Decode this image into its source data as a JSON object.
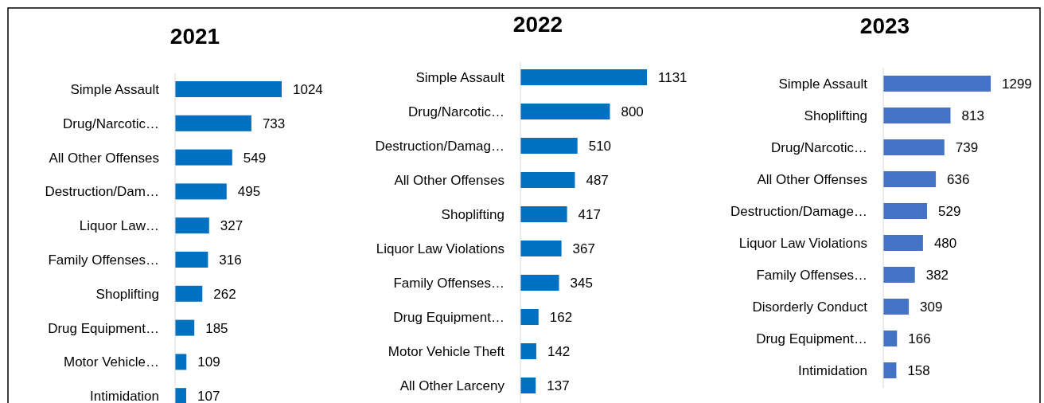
{
  "chart_data": [
    {
      "type": "bar",
      "orientation": "horizontal",
      "title": "2021",
      "color": "#0070c0",
      "data_labels": true,
      "categories": [
        "Simple Assault",
        "Drug/Narcotic…",
        "All Other Offenses",
        "Destruction/Dam…",
        "Liquor Law…",
        "Family Offenses…",
        "Shoplifting",
        "Drug Equipment…",
        "Motor Vehicle…",
        "Intimidation"
      ],
      "values": [
        1024,
        733,
        549,
        495,
        327,
        316,
        262,
        185,
        109,
        107
      ]
    },
    {
      "type": "bar",
      "orientation": "horizontal",
      "title": "2022",
      "color": "#0070c0",
      "data_labels": true,
      "categories": [
        "Simple Assault",
        "Drug/Narcotic…",
        "Destruction/Damag…",
        "All Other Offenses",
        "Shoplifting",
        "Liquor Law Violations",
        "Family Offenses…",
        "Drug Equipment…",
        "Motor Vehicle Theft",
        "All Other Larceny"
      ],
      "values": [
        1131,
        800,
        510,
        487,
        417,
        367,
        345,
        162,
        142,
        137
      ]
    },
    {
      "type": "bar",
      "orientation": "horizontal",
      "title": "2023",
      "color": "#4472c4",
      "data_labels": true,
      "categories": [
        "Simple Assault",
        "Shoplifting",
        "Drug/Narcotic…",
        "All Other Offenses",
        "Destruction/Damage…",
        "Liquor Law Violations",
        "Family Offenses…",
        "Disorderly Conduct",
        "Drug Equipment…",
        "Intimidation"
      ],
      "values": [
        1299,
        813,
        739,
        636,
        529,
        480,
        382,
        309,
        166,
        158
      ]
    }
  ]
}
